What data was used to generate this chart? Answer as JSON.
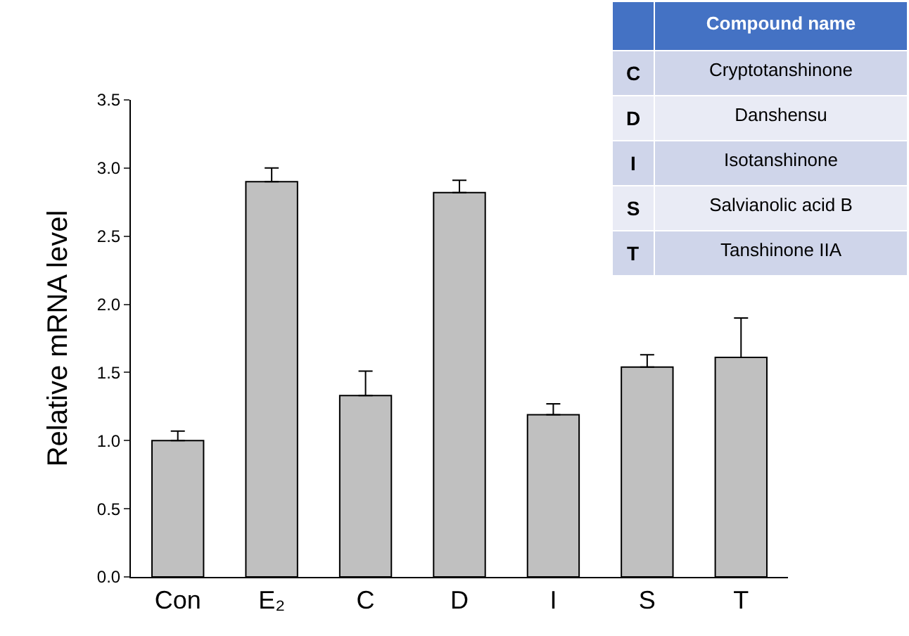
{
  "chart_data": {
    "type": "bar",
    "ylabel": "Relative mRNA level",
    "categories": [
      "Con",
      "E₂",
      "C",
      "D",
      "I",
      "S",
      "T"
    ],
    "values": [
      1.0,
      2.9,
      1.33,
      2.82,
      1.19,
      1.54,
      1.61
    ],
    "errors": [
      [
        1.0,
        1.07
      ],
      [
        2.9,
        3.0
      ],
      [
        1.33,
        1.51
      ],
      [
        2.82,
        2.91
      ],
      [
        1.19,
        1.27
      ],
      [
        1.54,
        1.63
      ],
      [
        1.61,
        1.9
      ]
    ],
    "color": "#c0c0c0",
    "ylim": [
      0,
      3.5
    ],
    "yticks": [
      {
        "value": 0,
        "label": "0.0"
      },
      {
        "value": 0.5,
        "label": "0.5"
      },
      {
        "value": 1,
        "label": "1.0"
      },
      {
        "value": 1.5,
        "label": "1.5"
      },
      {
        "value": 2,
        "label": "2.0"
      },
      {
        "value": 2.5,
        "label": "2.5"
      },
      {
        "value": 3,
        "label": "3.0"
      },
      {
        "value": 3.5,
        "label": "3.5"
      }
    ],
    "grid": false,
    "annotations": [
      "Compound name",
      "C",
      "Cryptotanshinone",
      "D",
      "Danshensu",
      "I",
      "Isotanshinone",
      "S",
      "Salvianolic acid B",
      "T",
      "Tanshinone IIA"
    ]
  }
}
